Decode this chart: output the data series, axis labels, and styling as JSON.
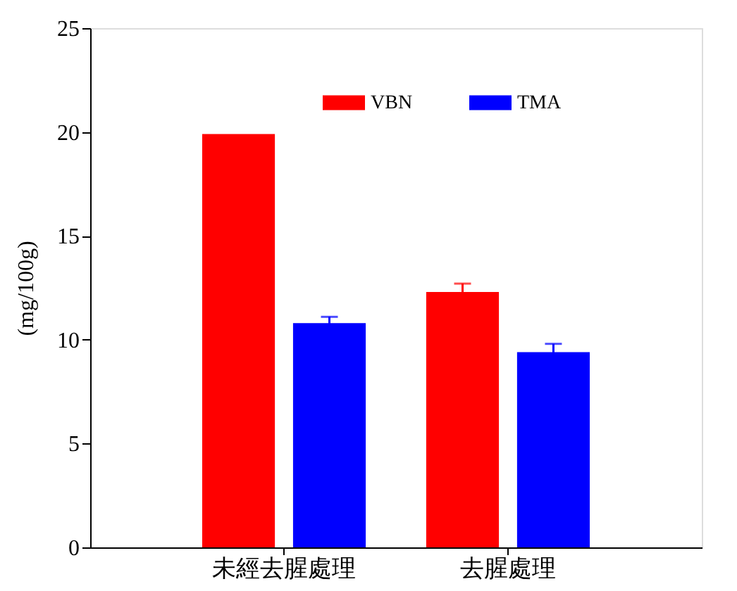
{
  "chart_data": {
    "type": "bar",
    "ylabel": "(mg/100g)",
    "categories": [
      "未經去腥處理",
      "去腥處理"
    ],
    "series": [
      {
        "name": "VBN",
        "color": "#ff0000",
        "values": [
          19.9,
          12.3
        ],
        "errors": [
          null,
          0.4
        ]
      },
      {
        "name": "TMA",
        "color": "#0000ff",
        "values": [
          10.8,
          9.4
        ],
        "errors": [
          0.3,
          0.4
        ]
      }
    ],
    "ylim": [
      0,
      25
    ],
    "yticks": [
      0,
      5,
      10,
      15,
      20,
      25
    ],
    "grid": false,
    "legend": "top right"
  }
}
